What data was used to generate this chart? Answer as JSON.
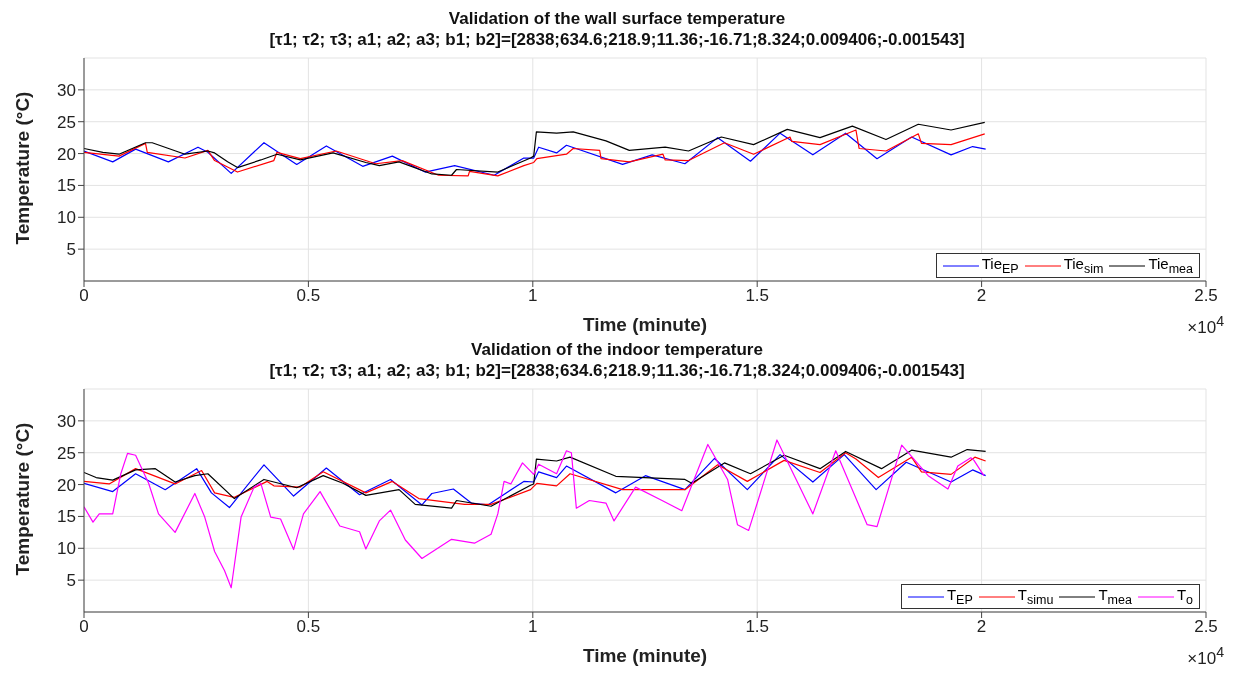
{
  "chart_data": [
    {
      "type": "line",
      "title": "Validation of the wall surface temperature",
      "subtitle": "[τ1; τ2; τ3; a1; a2; a3; b1; b2]=[2838;634.6;218.9;11.36;-16.71;8.324;0.009406;-0.001543]",
      "xlabel": "Time (minute)",
      "ylabel": "Temperature (°C)",
      "xlim": [
        0,
        2.5
      ],
      "xticks": [
        0,
        0.5,
        1,
        1.5,
        2,
        2.5
      ],
      "ylim": [
        0,
        35
      ],
      "yticks": [
        5,
        10,
        15,
        20,
        25,
        30
      ],
      "grid": true,
      "legend": "bottom right",
      "annotations": [
        "×10$^{4}$"
      ],
      "series": [
        {
          "name": "Tie$_{EP}$",
          "color": "#0000ff",
          "x": [
            0,
            0.064,
            0.115,
            0.188,
            0.254,
            0.276,
            0.328,
            0.401,
            0.474,
            0.54,
            0.621,
            0.687,
            0.76,
            0.826,
            0.914,
            0.98,
            1.002,
            1.013,
            1.053,
            1.075,
            1.2,
            1.266,
            1.339,
            1.412,
            1.485,
            1.551,
            1.624,
            1.697,
            1.767,
            1.844,
            1.932,
            1.98,
            2.009
          ],
          "values": [
            20.4,
            18.7,
            20.7,
            18.7,
            21.0,
            20.2,
            16.9,
            21.7,
            18.3,
            21.2,
            18.0,
            19.6,
            17.1,
            18.1,
            16.6,
            19.3,
            19.3,
            21.0,
            20.1,
            21.3,
            18.3,
            19.8,
            18.4,
            22.5,
            18.8,
            23.2,
            19.8,
            23.2,
            19.2,
            22.6,
            19.8,
            21.1,
            20.7
          ]
        },
        {
          "name": "Tie$_{sim}$",
          "color": "#ff0000",
          "x": [
            0,
            0.078,
            0.137,
            0.141,
            0.225,
            0.276,
            0.291,
            0.342,
            0.423,
            0.43,
            0.482,
            0.562,
            0.65,
            0.709,
            0.79,
            0.856,
            0.859,
            0.922,
            0.98,
            1.002,
            1.009,
            1.075,
            1.09,
            1.149,
            1.152,
            1.215,
            1.29,
            1.295,
            1.347,
            1.427,
            1.492,
            1.573,
            1.577,
            1.64,
            1.72,
            1.727,
            1.787,
            1.859,
            1.866,
            1.932,
            2.007
          ],
          "values": [
            20.2,
            19.6,
            21.6,
            20.2,
            19.3,
            20.5,
            18.9,
            17.1,
            18.9,
            20.2,
            19.2,
            20.4,
            18.4,
            18.9,
            16.6,
            16.5,
            17.2,
            16.5,
            18.1,
            18.6,
            19.2,
            19.9,
            20.8,
            20.5,
            19.2,
            18.7,
            19.9,
            19.0,
            18.9,
            21.7,
            19.9,
            22.6,
            21.9,
            21.4,
            23.7,
            20.8,
            20.4,
            23.1,
            21.6,
            21.4,
            23.1
          ]
        },
        {
          "name": "Tie$_{mea}$",
          "color": "#000000",
          "x": [
            0,
            0.042,
            0.078,
            0.137,
            0.152,
            0.225,
            0.276,
            0.291,
            0.32,
            0.342,
            0.394,
            0.43,
            0.482,
            0.555,
            0.628,
            0.658,
            0.702,
            0.775,
            0.819,
            0.83,
            0.922,
            0.995,
            1.002,
            1.008,
            1.053,
            1.09,
            1.163,
            1.215,
            1.295,
            1.347,
            1.42,
            1.492,
            1.567,
            1.64,
            1.712,
            1.787,
            1.859,
            1.932,
            2.007
          ],
          "values": [
            20.8,
            20.2,
            19.9,
            21.7,
            21.7,
            19.9,
            20.4,
            20.1,
            18.7,
            17.8,
            19.0,
            19.9,
            19.0,
            20.1,
            18.6,
            18.1,
            18.7,
            16.8,
            16.6,
            17.5,
            17.1,
            19.3,
            19.6,
            23.4,
            23.2,
            23.4,
            22.0,
            20.5,
            21.0,
            20.4,
            22.6,
            21.4,
            23.8,
            22.5,
            24.3,
            22.2,
            24.6,
            23.7,
            24.9
          ]
        }
      ]
    },
    {
      "type": "line",
      "title": "Validation of the indoor temperature",
      "subtitle": "[τ1; τ2; τ3; a1; a2; a3; b1; b2]=[2838;634.6;218.9;11.36;-16.71;8.324;0.009406;-0.001543]",
      "xlabel": "Time (minute)",
      "ylabel": "Temperature (°C)",
      "xlim": [
        0,
        2.5
      ],
      "xticks": [
        0,
        0.5,
        1,
        1.5,
        2,
        2.5
      ],
      "ylim": [
        0,
        35
      ],
      "yticks": [
        5,
        10,
        15,
        20,
        25,
        30
      ],
      "grid": true,
      "legend": "bottom right",
      "annotations": [
        "×10$^{4}$"
      ],
      "series": [
        {
          "name": "T$_{EP}$",
          "color": "#0000ff",
          "x": [
            0,
            0.064,
            0.115,
            0.181,
            0.251,
            0.284,
            0.324,
            0.401,
            0.467,
            0.54,
            0.614,
            0.683,
            0.753,
            0.775,
            0.823,
            0.863,
            0.9,
            0.98,
            1.002,
            1.013,
            1.053,
            1.075,
            1.185,
            1.251,
            1.339,
            1.405,
            1.478,
            1.551,
            1.624,
            1.694,
            1.765,
            1.832,
            1.932,
            1.98,
            2.009
          ],
          "values": [
            20.2,
            18.9,
            21.7,
            19.2,
            22.5,
            18.7,
            16.4,
            23.1,
            18.2,
            22.6,
            18.4,
            20.8,
            16.8,
            18.6,
            19.3,
            17.1,
            16.8,
            20.5,
            20.4,
            22.0,
            21.1,
            22.9,
            18.7,
            21.4,
            19.2,
            24.1,
            19.2,
            24.7,
            20.4,
            24.7,
            19.2,
            23.5,
            20.4,
            22.3,
            21.4
          ]
        },
        {
          "name": "T$_{simu}$",
          "color": "#ff0000",
          "x": [
            0,
            0.056,
            0.115,
            0.203,
            0.262,
            0.291,
            0.335,
            0.408,
            0.423,
            0.482,
            0.533,
            0.628,
            0.687,
            0.746,
            0.848,
            0.907,
            0.995,
            1.009,
            1.053,
            1.083,
            1.2,
            1.339,
            1.412,
            1.478,
            1.56,
            1.64,
            1.697,
            1.72,
            1.77,
            1.844,
            1.866,
            1.932,
            1.985,
            2.009
          ],
          "values": [
            20.5,
            20.1,
            22.5,
            20.1,
            22.2,
            18.7,
            18.0,
            20.5,
            19.8,
            19.6,
            22.0,
            18.7,
            20.5,
            17.8,
            16.9,
            16.9,
            19.2,
            20.2,
            19.8,
            21.7,
            19.2,
            19.2,
            23.1,
            20.5,
            23.8,
            21.9,
            25.0,
            24.0,
            21.1,
            24.3,
            22.0,
            21.6,
            24.3,
            23.7
          ]
        },
        {
          "name": "T$_{mea}$",
          "color": "#000000",
          "x": [
            0,
            0.027,
            0.064,
            0.115,
            0.159,
            0.203,
            0.247,
            0.276,
            0.335,
            0.401,
            0.474,
            0.533,
            0.577,
            0.628,
            0.702,
            0.738,
            0.819,
            0.83,
            0.907,
            0.995,
            1.002,
            1.008,
            1.053,
            1.083,
            1.185,
            1.339,
            1.354,
            1.427,
            1.485,
            1.56,
            1.64,
            1.697,
            1.777,
            1.844,
            1.932,
            1.968,
            2.009
          ],
          "values": [
            21.9,
            21.1,
            20.7,
            22.3,
            22.5,
            20.4,
            21.4,
            21.7,
            17.8,
            20.8,
            19.5,
            21.4,
            20.2,
            18.3,
            19.2,
            16.9,
            16.3,
            17.5,
            16.6,
            19.9,
            20.1,
            24.0,
            23.7,
            24.3,
            21.3,
            20.8,
            20.2,
            23.4,
            21.7,
            24.6,
            22.5,
            25.2,
            22.5,
            25.4,
            24.3,
            25.5,
            25.2
          ]
        },
        {
          "name": "T$_{o}$",
          "color": "#ff00ff",
          "x": [
            0,
            0.02,
            0.034,
            0.064,
            0.082,
            0.097,
            0.115,
            0.144,
            0.166,
            0.203,
            0.247,
            0.269,
            0.291,
            0.313,
            0.328,
            0.35,
            0.379,
            0.394,
            0.416,
            0.438,
            0.467,
            0.489,
            0.526,
            0.57,
            0.614,
            0.628,
            0.658,
            0.683,
            0.716,
            0.753,
            0.819,
            0.87,
            0.907,
            0.922,
            0.936,
            0.951,
            0.977,
            1.002,
            1.013,
            1.053,
            1.075,
            1.086,
            1.097,
            1.126,
            1.163,
            1.181,
            1.229,
            1.288,
            1.332,
            1.39,
            1.434,
            1.456,
            1.481,
            1.544,
            1.624,
            1.675,
            1.745,
            1.767,
            1.822,
            1.881,
            1.925,
            1.947,
            1.976,
            1.983,
            2.005
          ],
          "values": [
            16.5,
            14.1,
            15.4,
            15.4,
            21.7,
            24.9,
            24.6,
            20.2,
            15.4,
            12.5,
            18.6,
            14.9,
            9.5,
            6.5,
            3.8,
            14.9,
            19.6,
            20.2,
            14.9,
            14.6,
            9.8,
            15.4,
            18.9,
            13.5,
            12.6,
            9.9,
            14.3,
            16.0,
            11.3,
            8.4,
            11.4,
            10.8,
            12.2,
            15.4,
            20.5,
            20.1,
            23.4,
            21.6,
            23.2,
            21.7,
            25.3,
            25.0,
            16.3,
            17.5,
            17.1,
            14.3,
            19.6,
            17.5,
            15.9,
            26.3,
            20.8,
            13.7,
            12.8,
            27.0,
            15.4,
            25.3,
            13.7,
            13.4,
            26.2,
            21.4,
            19.3,
            22.9,
            24.2,
            23.8,
            21.4
          ]
        }
      ]
    }
  ]
}
